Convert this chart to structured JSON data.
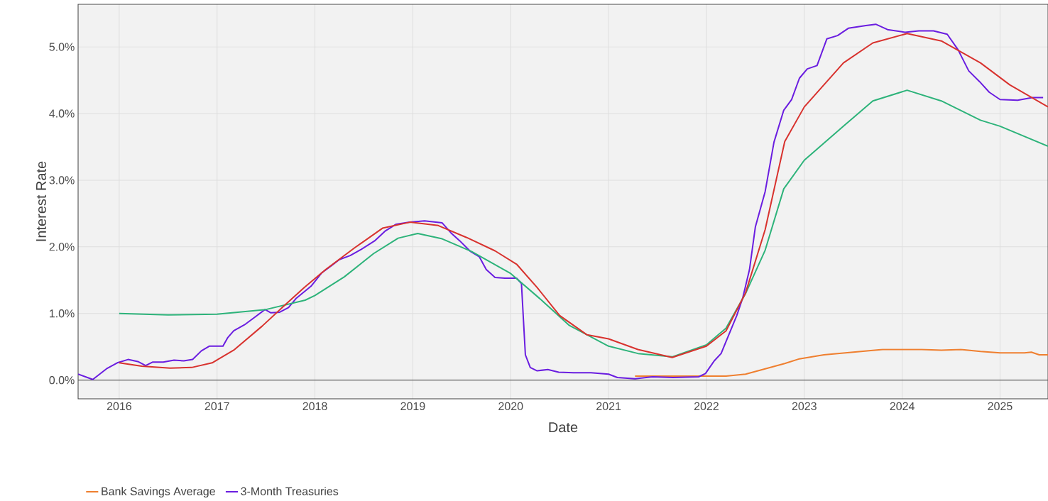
{
  "chart_data": {
    "type": "line",
    "xlabel": "Date",
    "ylabel": "Interest Rate",
    "xlim": [
      2015.58,
      2025.49
    ],
    "xticks": [
      2016,
      2017,
      2018,
      2019,
      2020,
      2021,
      2022,
      2023,
      2024,
      2025
    ],
    "ylim": [
      -0.28,
      5.64
    ],
    "yticks": [
      {
        "value": 0,
        "label": "0.0%"
      },
      {
        "value": 1,
        "label": "1.0%"
      },
      {
        "value": 2,
        "label": "2.0%"
      },
      {
        "value": 3,
        "label": "3.0%"
      },
      {
        "value": 4,
        "label": "4.0%"
      },
      {
        "value": 5,
        "label": "5.0%"
      }
    ],
    "grid": true,
    "legend": "bottom",
    "line_style": "solid",
    "ref_lines": [
      {
        "axis": "y",
        "value": 0,
        "color": "#555555"
      }
    ],
    "series": [
      {
        "name": "Bank Savings Average",
        "color": "#ef7f2f",
        "x": [
          2021.27,
          2022.0,
          2022.2,
          2022.4,
          2022.6,
          2022.8,
          2022.95,
          2023.2,
          2023.5,
          2023.8,
          2024.0,
          2024.2,
          2024.4,
          2024.6,
          2024.8,
          2025.0,
          2025.25,
          2025.32,
          2025.4,
          2025.49
        ],
        "values": [
          0.06,
          0.06,
          0.06,
          0.09,
          0.17,
          0.25,
          0.32,
          0.38,
          0.42,
          0.46,
          0.46,
          0.46,
          0.45,
          0.46,
          0.43,
          0.41,
          0.41,
          0.42,
          0.38,
          0.38
        ]
      },
      {
        "name": "3-Month Treasuries",
        "color": "#6a1de0",
        "x": [
          2015.58,
          2015.73,
          2015.87,
          2015.98,
          2016.09,
          2016.19,
          2016.27,
          2016.34,
          2016.45,
          2016.56,
          2016.66,
          2016.75,
          2016.84,
          2016.92,
          2017.06,
          2017.11,
          2017.17,
          2017.28,
          2017.39,
          2017.49,
          2017.55,
          2017.64,
          2017.73,
          2017.81,
          2017.96,
          2018.07,
          2018.18,
          2018.25,
          2018.36,
          2018.47,
          2018.61,
          2018.72,
          2018.83,
          2018.97,
          2019.12,
          2019.3,
          2019.39,
          2019.48,
          2019.59,
          2019.68,
          2019.75,
          2019.84,
          2019.94,
          2020.06,
          2020.11,
          2020.13,
          2020.15,
          2020.2,
          2020.27,
          2020.38,
          2020.49,
          2020.64,
          2020.82,
          2021.0,
          2021.09,
          2021.27,
          2021.45,
          2021.66,
          2021.92,
          2021.99,
          2022.08,
          2022.15,
          2022.22,
          2022.31,
          2022.37,
          2022.44,
          2022.5,
          2022.6,
          2022.69,
          2022.79,
          2022.87,
          2022.95,
          2023.03,
          2023.13,
          2023.23,
          2023.34,
          2023.45,
          2023.63,
          2023.73,
          2023.85,
          2024.03,
          2024.17,
          2024.32,
          2024.46,
          2024.57,
          2024.68,
          2024.79,
          2024.89,
          2025.0,
          2025.18,
          2025.33,
          2025.44
        ],
        "values": [
          0.09,
          0.01,
          0.17,
          0.26,
          0.31,
          0.28,
          0.22,
          0.27,
          0.27,
          0.3,
          0.29,
          0.31,
          0.44,
          0.51,
          0.51,
          0.64,
          0.74,
          0.83,
          0.95,
          1.06,
          1.01,
          1.02,
          1.09,
          1.23,
          1.41,
          1.61,
          1.73,
          1.81,
          1.87,
          1.96,
          2.09,
          2.24,
          2.34,
          2.37,
          2.39,
          2.36,
          2.21,
          2.09,
          1.93,
          1.85,
          1.66,
          1.54,
          1.53,
          1.53,
          1.45,
          0.91,
          0.38,
          0.19,
          0.14,
          0.16,
          0.12,
          0.11,
          0.11,
          0.09,
          0.04,
          0.02,
          0.05,
          0.04,
          0.05,
          0.1,
          0.29,
          0.4,
          0.65,
          0.97,
          1.23,
          1.66,
          2.3,
          2.83,
          3.57,
          4.05,
          4.21,
          4.53,
          4.67,
          4.72,
          5.12,
          5.17,
          5.28,
          5.32,
          5.34,
          5.26,
          5.22,
          5.24,
          5.24,
          5.19,
          4.96,
          4.64,
          4.48,
          4.32,
          4.21,
          4.2,
          4.24,
          4.24
        ]
      },
      {
        "color": "#2db37a",
        "x": [
          2016.0,
          2016.5,
          2017.0,
          2017.5,
          2017.9,
          2018.0,
          2018.3,
          2018.6,
          2018.85,
          2019.05,
          2019.3,
          2019.6,
          2020.0,
          2020.3,
          2020.6,
          2021.0,
          2021.3,
          2021.65,
          2022.0,
          2022.2,
          2022.4,
          2022.6,
          2022.79,
          2023.0,
          2023.4,
          2023.7,
          2024.05,
          2024.4,
          2024.8,
          2025.0,
          2025.49
        ],
        "values": [
          1.0,
          0.98,
          0.99,
          1.06,
          1.2,
          1.27,
          1.55,
          1.9,
          2.13,
          2.2,
          2.12,
          1.93,
          1.6,
          1.22,
          0.82,
          0.51,
          0.4,
          0.35,
          0.53,
          0.78,
          1.3,
          1.95,
          2.87,
          3.3,
          3.81,
          4.19,
          4.35,
          4.19,
          3.9,
          3.81,
          3.51
        ]
      },
      {
        "color": "#d8322e",
        "x": [
          2016.0,
          2016.23,
          2016.52,
          2016.74,
          2016.95,
          2017.17,
          2017.46,
          2017.68,
          2017.89,
          2018.11,
          2018.4,
          2018.69,
          2018.97,
          2019.26,
          2019.55,
          2019.84,
          2020.06,
          2020.27,
          2020.5,
          2020.78,
          2021.0,
          2021.3,
          2021.65,
          2022.0,
          2022.2,
          2022.4,
          2022.6,
          2022.8,
          2023.0,
          2023.4,
          2023.7,
          2024.05,
          2024.4,
          2024.8,
          2025.1,
          2025.49
        ],
        "values": [
          0.26,
          0.21,
          0.18,
          0.19,
          0.26,
          0.45,
          0.81,
          1.11,
          1.39,
          1.66,
          1.98,
          2.28,
          2.37,
          2.32,
          2.14,
          1.94,
          1.74,
          1.39,
          0.97,
          0.68,
          0.62,
          0.46,
          0.34,
          0.51,
          0.74,
          1.31,
          2.26,
          3.58,
          4.1,
          4.76,
          5.06,
          5.2,
          5.09,
          4.76,
          4.43,
          4.1
        ]
      }
    ]
  }
}
